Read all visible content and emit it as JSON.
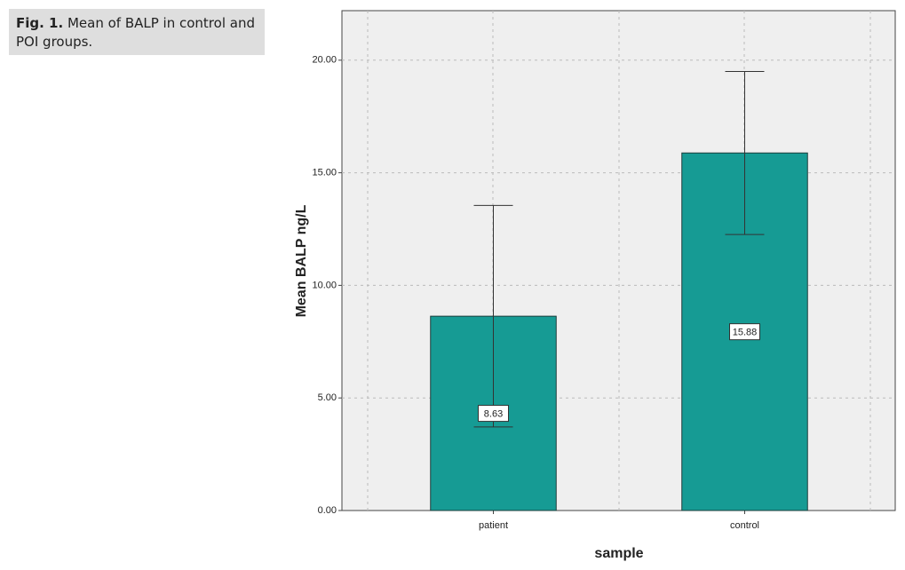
{
  "chart_data": {
    "type": "bar",
    "caption_label": "Fig. 1.",
    "caption_text": "Mean of  BALP  in control and POI groups.",
    "ylabel": "Mean BALP  ng/L",
    "xlabel": "sample",
    "categories": [
      "patient",
      "control"
    ],
    "values": [
      8.63,
      15.88
    ],
    "errors": [
      4.92,
      3.62
    ],
    "color": "#169b94",
    "ylim": [
      0,
      22.2
    ],
    "yticks": [
      {
        "value": 0,
        "label": "0.00"
      },
      {
        "value": 5,
        "label": "5.00"
      },
      {
        "value": 10,
        "label": "10.00"
      },
      {
        "value": 15,
        "label": "15.00"
      },
      {
        "value": 20,
        "label": "20.00"
      }
    ],
    "grid": true
  }
}
